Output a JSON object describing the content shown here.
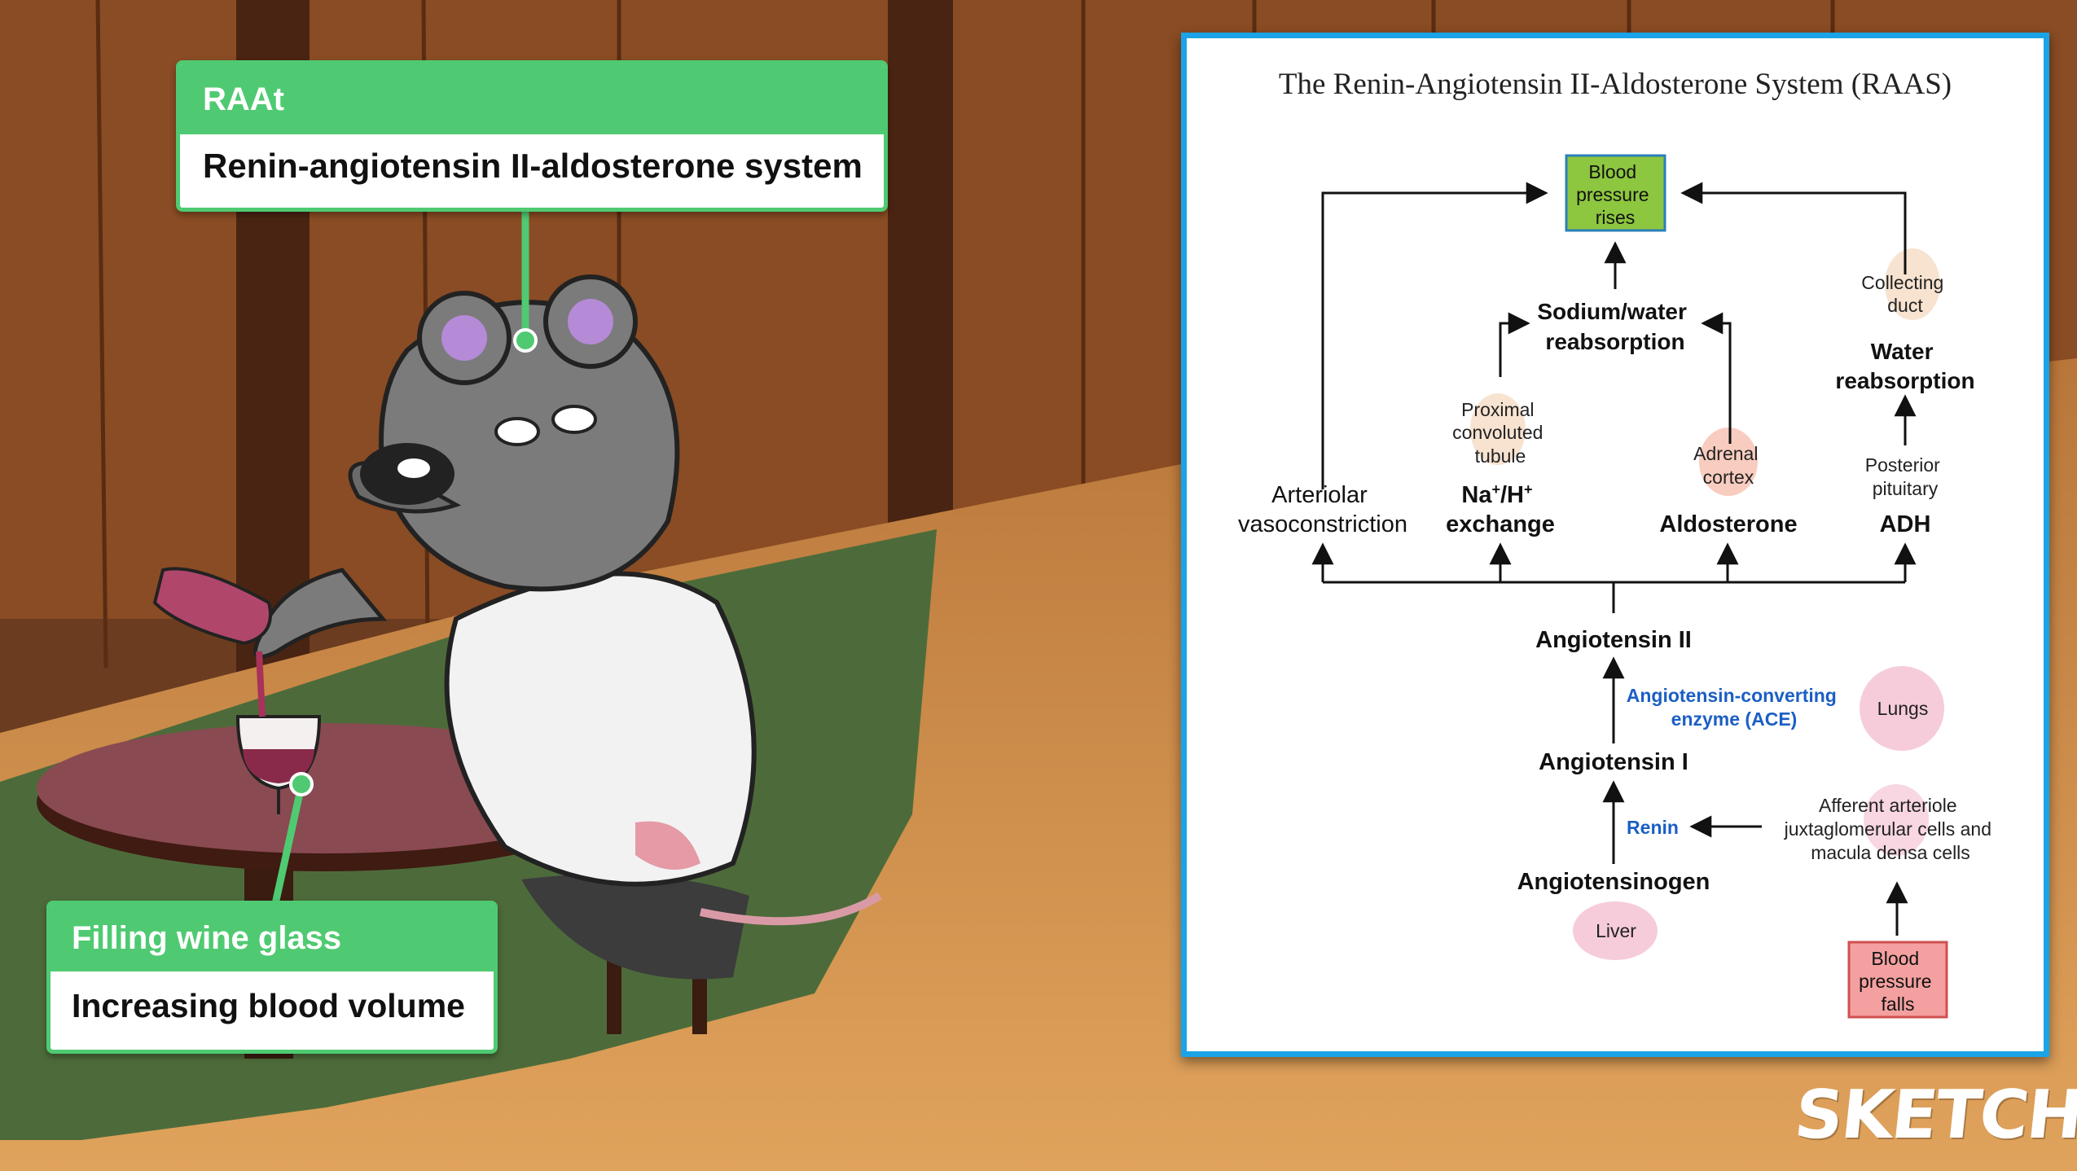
{
  "callouts": {
    "top": {
      "header": "RAAt",
      "body": "Renin-angiotensin II-aldosterone system"
    },
    "bottom": {
      "header": "Filling wine glass",
      "body": "Increasing blood volume"
    }
  },
  "diagram": {
    "title": "The Renin-Angiotensin II-Aldosterone System (RAAS)",
    "bp_rises": [
      "Blood",
      "pressure",
      "rises"
    ],
    "sodium_water": [
      "Sodium/water",
      "reabsorption"
    ],
    "collecting_duct": [
      "Collecting",
      "duct"
    ],
    "water_reabsorption": [
      "Water",
      "reabsorption"
    ],
    "proximal_tubule": [
      "Proximal",
      "convoluted",
      "tubule"
    ],
    "adrenal_cortex": [
      "Adrenal",
      "cortex"
    ],
    "posterior_pituitary": [
      "Posterior",
      "pituitary"
    ],
    "arteriolar": [
      "Arteriolar",
      "vasoconstriction"
    ],
    "na_h": {
      "na": "Na",
      "plus": "+",
      "slash_h": "/H",
      "exchange": "exchange"
    },
    "aldosterone": "Aldosterone",
    "adh": "ADH",
    "angiotensin_ii": "Angiotensin II",
    "ace": [
      "Angiotensin-converting",
      "enzyme (ACE)"
    ],
    "lungs": "Lungs",
    "angiotensin_i": "Angiotensin I",
    "renin": "Renin",
    "afferent": [
      "Afferent arteriole",
      "juxtaglomerular cells and",
      "macula densa cells"
    ],
    "angiotensinogen": "Angiotensinogen",
    "liver": "Liver",
    "bp_falls": [
      "Blood",
      "pressure",
      "falls"
    ]
  },
  "brand": "SKETCHY",
  "colors": {
    "callout_green": "#4fca72",
    "panel_border": "#1aa3e8",
    "rises_fill": "#8dc63f",
    "falls_fill": "#f4a0a0",
    "enzyme_blue": "#1b5fc4"
  }
}
